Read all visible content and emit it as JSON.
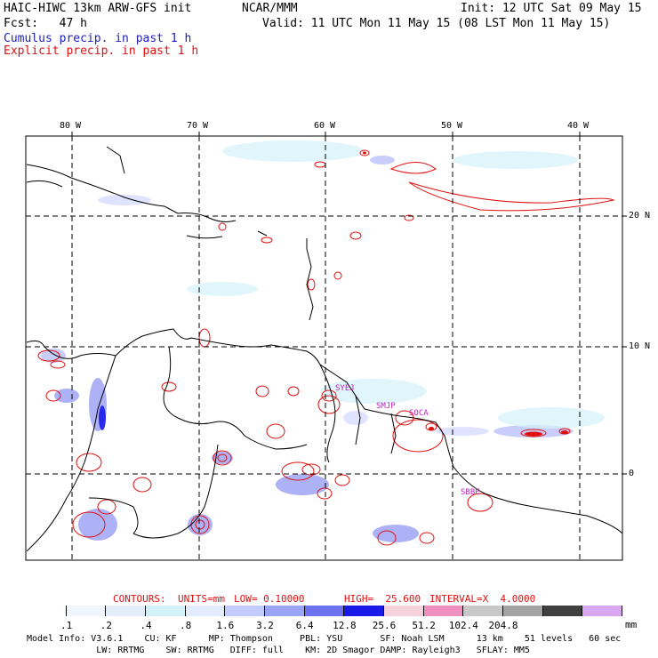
{
  "header": {
    "model_title": "HAIC-HIWC 13km ARW-GFS init",
    "agency": "NCAR/MMM",
    "init": "Init: 12 UTC Sat 09 May 15",
    "fcst": "Fcst:   47 h",
    "valid": "Valid: 11 UTC Mon 11 May 15 (08 LST Mon 11 May 15)",
    "legend_cumulus": "Cumulus precip. in past 1 h",
    "legend_explicit": "Explicit precip. in past 1 h"
  },
  "colors": {
    "cumulus": "#3030d0",
    "explicit": "#e01010",
    "grid": "#000000"
  },
  "map": {
    "lon_labels": [
      "80 W",
      "70 W",
      "60 W",
      "50 W",
      "40 W"
    ],
    "lat_labels": [
      "20 N",
      "10 N",
      "0"
    ],
    "stations": [
      "SYEJ",
      "SMJP",
      "SOCA",
      "SBBE"
    ]
  },
  "contour_info": {
    "contours": "CONTOURS:",
    "units": "UNITS=mm",
    "low": "LOW= 0.10000",
    "high": "HIGH=  25.600",
    "interval": "INTERVAL=X  4.0000"
  },
  "colorbar": {
    "colors": [
      "#ffffff",
      "#f0f6fb",
      "#e4eef8",
      "#d4f2fa",
      "#e4ecff",
      "#c4ccff",
      "#9aa4f8",
      "#6a72f0",
      "#1a1ae8",
      "#f6d2dc",
      "#f090c0",
      "#c8c8c8",
      "#a4a4a4",
      "#404040",
      "#d8a8f0"
    ],
    "labels": [
      ".1",
      ".2",
      ".4",
      ".8",
      "1.6",
      "3.2",
      "6.4",
      "12.8",
      "25.6",
      "51.2",
      "102.4",
      "204.8"
    ],
    "unit": "mm"
  },
  "footer": {
    "line1": "Model Info: V3.6.1    CU: KF      MP: Thompson     PBL: YSU       SF: Noah LSM      13 km    51 levels   60 sec",
    "line2": "             LW: RRTMG    SW: RRTMG   DIFF: full    KM: 2D Smagor DAMP: Rayleigh3   SFLAY: MM5"
  }
}
